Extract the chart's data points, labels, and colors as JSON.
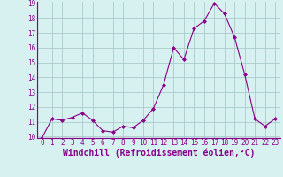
{
  "x": [
    0,
    1,
    2,
    3,
    4,
    5,
    6,
    7,
    8,
    9,
    10,
    11,
    12,
    13,
    14,
    15,
    16,
    17,
    18,
    19,
    20,
    21,
    22,
    23
  ],
  "y": [
    9.9,
    11.2,
    11.1,
    11.3,
    11.6,
    11.1,
    10.4,
    10.3,
    10.7,
    10.6,
    11.1,
    11.9,
    13.5,
    16.0,
    15.2,
    17.3,
    17.8,
    19.0,
    18.3,
    16.7,
    14.2,
    11.2,
    10.7,
    11.2
  ],
  "line_color": "#880088",
  "marker": "D",
  "marker_size": 2,
  "bg_color": "#d7f0f0",
  "grid_color": "#aacccc",
  "xlabel": "Windchill (Refroidissement éolien,°C)",
  "ylim": [
    10,
    19
  ],
  "xlim": [
    -0.5,
    23.5
  ],
  "yticks": [
    10,
    11,
    12,
    13,
    14,
    15,
    16,
    17,
    18,
    19
  ],
  "xticks": [
    0,
    1,
    2,
    3,
    4,
    5,
    6,
    7,
    8,
    9,
    10,
    11,
    12,
    13,
    14,
    15,
    16,
    17,
    18,
    19,
    20,
    21,
    22,
    23
  ],
  "tick_label_fontsize": 5.5,
  "xlabel_fontsize": 7.0,
  "line_width": 0.8
}
